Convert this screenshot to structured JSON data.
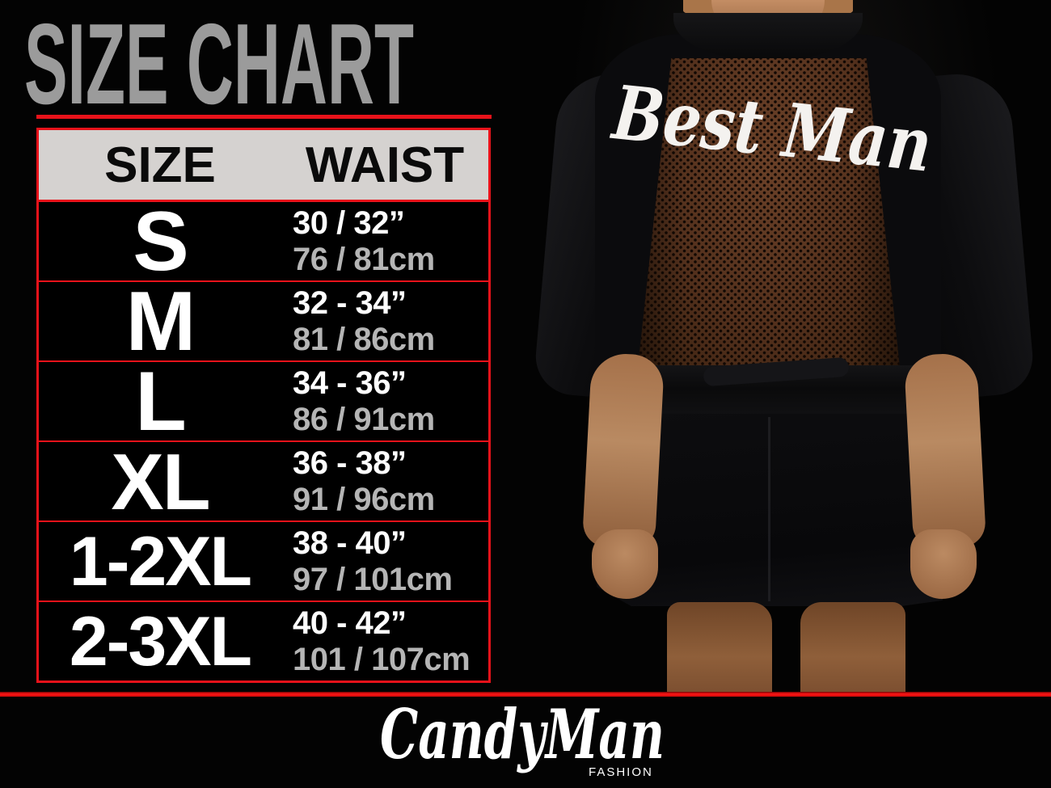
{
  "title": "SIZE CHART",
  "table": {
    "headers": {
      "size": "SIZE",
      "waist": "WAIST"
    },
    "rows": [
      {
        "size": "S",
        "waist_in": "30 / 32”",
        "waist_cm": "76 / 81cm"
      },
      {
        "size": "M",
        "waist_in": "32 - 34”",
        "waist_cm": "81 / 86cm"
      },
      {
        "size": "L",
        "waist_in": "34 - 36”",
        "waist_cm": "86 / 91cm"
      },
      {
        "size": "XL",
        "waist_in": "36 - 38”",
        "waist_cm": "91 / 96cm"
      },
      {
        "size": "1-2XL",
        "waist_in": "38 - 40”",
        "waist_cm": "97 / 101cm"
      },
      {
        "size": "2-3XL",
        "waist_in": "40 - 42”",
        "waist_cm": "101 / 107cm"
      }
    ]
  },
  "photo": {
    "garment_text": "Best Man"
  },
  "footer": {
    "brand": "CandyMan",
    "brand_sub": "FASHION"
  },
  "colors": {
    "accent_red": "#e8121a",
    "title_gray": "#9b9b9b",
    "header_bg": "#d5d2d0",
    "size_text": "#ffffff",
    "waist_in_text": "#ffffff",
    "waist_cm_text": "#b5b5b5",
    "background": "#030303"
  }
}
